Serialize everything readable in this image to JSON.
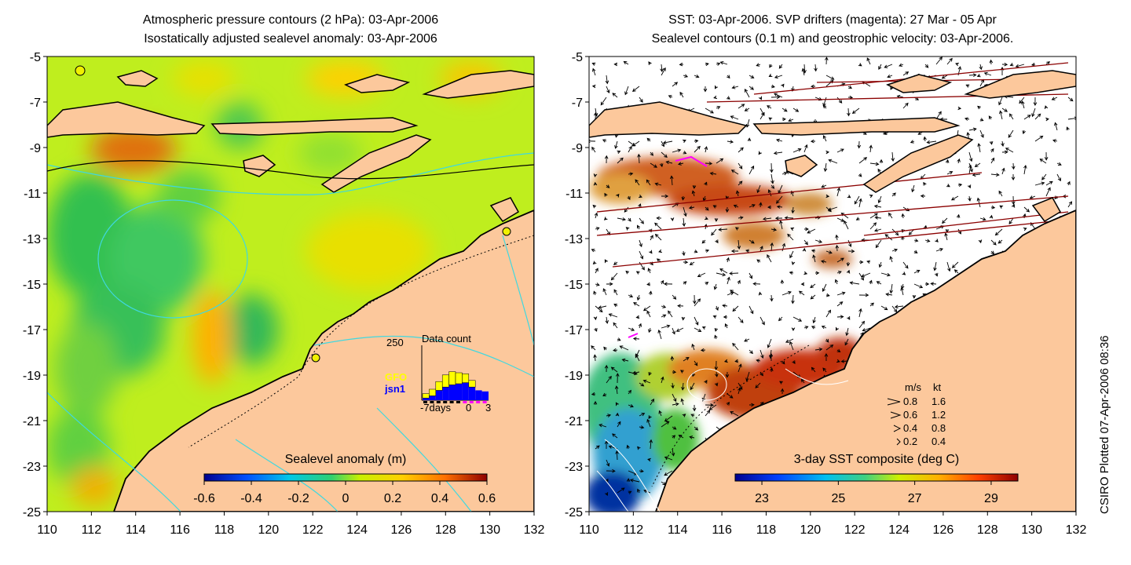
{
  "left_panel": {
    "title_line1": "Atmospheric pressure contours (2 hPa): 03-Apr-2006",
    "title_line2": "Isostatically adjusted sealevel anomaly: 03-Apr-2006",
    "colorbar_label": "Sealevel anomaly (m)",
    "colorbar_ticks": [
      "-0.6",
      "-0.4",
      "-0.2",
      "0",
      "0.2",
      "0.4",
      "0.6"
    ],
    "colorbar_range": [
      -0.6,
      0.6
    ],
    "inset": {
      "title": "Data count",
      "y_max_label": "250",
      "x_labels": [
        "-7days",
        "0",
        "3"
      ],
      "legend": [
        {
          "name": "GFO",
          "color": "#ffff00"
        },
        {
          "name": "jsn1",
          "color": "#0000ff"
        }
      ],
      "gfo_counts": [
        20,
        30,
        40,
        55,
        60,
        50,
        40,
        30,
        0,
        0
      ],
      "jsn1_counts": [
        10,
        20,
        45,
        60,
        70,
        75,
        80,
        60,
        45,
        40
      ]
    }
  },
  "right_panel": {
    "title_line1": "SST: 03-Apr-2006. SVP drifters (magenta): 27 Mar - 05 Apr",
    "title_line2": "Sealevel contours (0.1 m) and geostrophic velocity: 03-Apr-2006.",
    "colorbar_label": "3-day SST composite (deg C)",
    "colorbar_ticks": [
      "23",
      "25",
      "27",
      "29"
    ],
    "colorbar_range": [
      22.3,
      29.7
    ],
    "velocity_legend": {
      "header_ms": "m/s",
      "header_kt": "kt",
      "rows": [
        {
          "ms": "0.8",
          "kt": "1.6"
        },
        {
          "ms": "0.6",
          "kt": "1.2"
        },
        {
          "ms": "0.4",
          "kt": "0.8"
        },
        {
          "ms": "0.2",
          "kt": "0.4"
        }
      ]
    }
  },
  "axes": {
    "lon_ticks": [
      "110",
      "112",
      "114",
      "116",
      "118",
      "120",
      "122",
      "124",
      "126",
      "128",
      "130",
      "132"
    ],
    "lat_ticks": [
      "-5",
      "-7",
      "-9",
      "-11",
      "-13",
      "-15",
      "-17",
      "-19",
      "-21",
      "-23",
      "-25"
    ],
    "lon_range": [
      110,
      132
    ],
    "lat_range": [
      -25,
      -5
    ]
  },
  "credit": "CSIRO Plotted 07-Apr-2006 08:36",
  "colors": {
    "land": "#fcc89c",
    "coast": "#000000",
    "contour": "#3fd8e0"
  }
}
